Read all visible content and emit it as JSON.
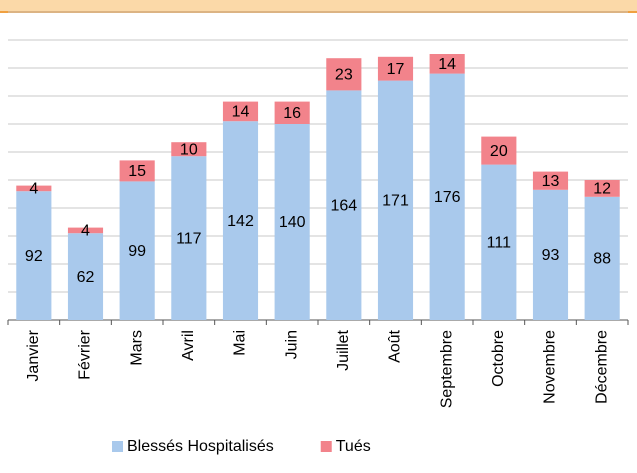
{
  "chart_data": {
    "type": "stacked-bar",
    "categories": [
      "Janvier",
      "Février",
      "Mars",
      "Avril",
      "Mai",
      "Juin",
      "Juillet",
      "Août",
      "Septembre",
      "Octobre",
      "Novembre",
      "Décembre"
    ],
    "series": [
      {
        "name": "Blessés Hospitalisés",
        "color": "#a9c9ec",
        "values": [
          92,
          62,
          99,
          117,
          142,
          140,
          164,
          171,
          176,
          111,
          93,
          88
        ]
      },
      {
        "name": "Tués",
        "color": "#f2838b",
        "values": [
          4,
          4,
          15,
          10,
          14,
          16,
          23,
          17,
          14,
          20,
          13,
          12
        ]
      }
    ],
    "ylim": [
      0,
      220
    ],
    "yticks": [
      0,
      20,
      40,
      60,
      80,
      100,
      120,
      140,
      160,
      180,
      200,
      220
    ],
    "grid": true,
    "legend": "bottom"
  }
}
